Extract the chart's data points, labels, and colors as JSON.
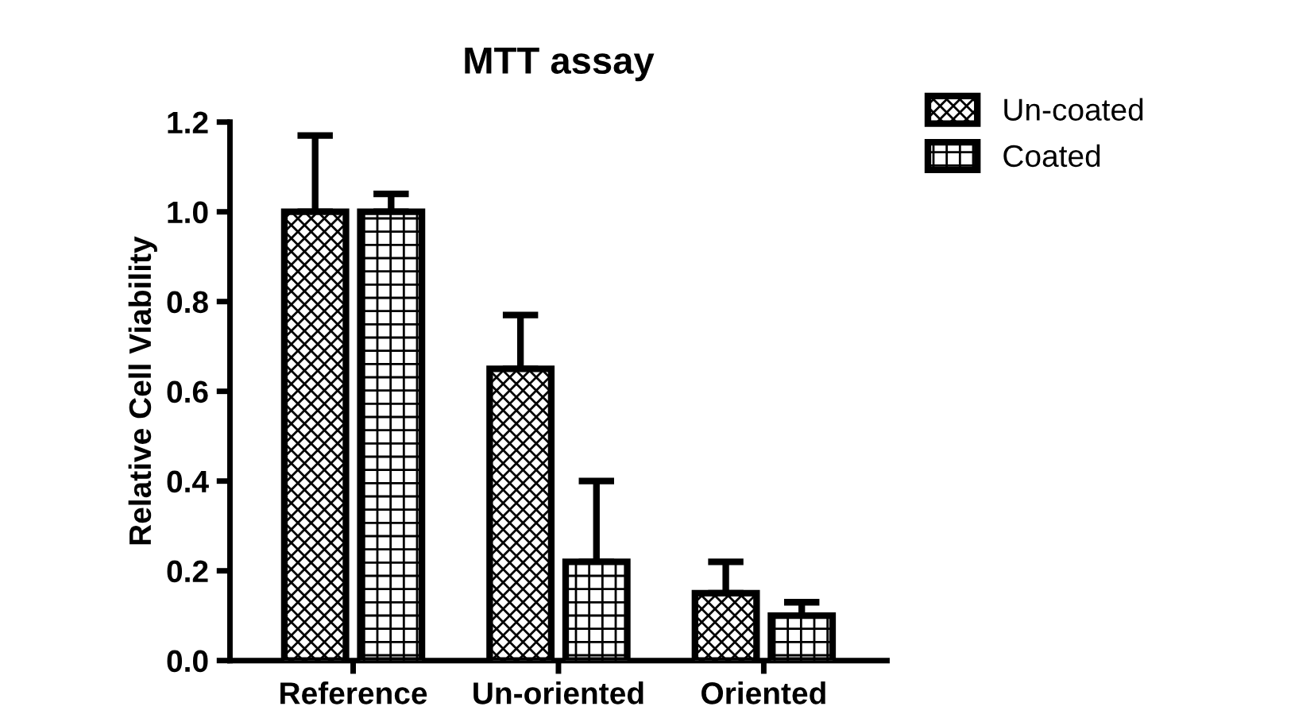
{
  "chart_data": {
    "type": "bar",
    "title": "MTT assay",
    "ylabel": "Relative Cell Viability",
    "categories": [
      "Reference",
      "Un-oriented",
      "Oriented"
    ],
    "series": [
      {
        "name": "Un-coated",
        "color": "#000000",
        "values": [
          1.0,
          0.65,
          0.15
        ],
        "errors": [
          [
            1.0,
            1.17
          ],
          [
            0.65,
            0.77
          ],
          [
            0.15,
            0.22
          ]
        ]
      },
      {
        "name": "Coated",
        "color": "#000000",
        "values": [
          1.0,
          0.22,
          0.1
        ],
        "errors": [
          [
            1.0,
            1.04
          ],
          [
            0.22,
            0.4
          ],
          [
            0.1,
            0.13
          ]
        ]
      }
    ],
    "ylim": [
      0,
      1.2
    ],
    "yticks": [
      {
        "value": 0,
        "label": "0.0"
      },
      0.2,
      0.4,
      0.6,
      0.8,
      {
        "value": 1,
        "label": "1.0"
      },
      1.2
    ],
    "grid": false,
    "legend": "top right"
  }
}
